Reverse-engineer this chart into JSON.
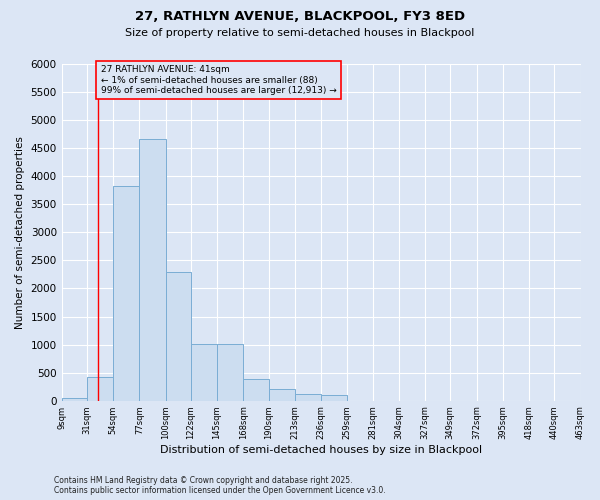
{
  "title_line1": "27, RATHLYN AVENUE, BLACKPOOL, FY3 8ED",
  "title_line2": "Size of property relative to semi-detached houses in Blackpool",
  "xlabel": "Distribution of semi-detached houses by size in Blackpool",
  "ylabel": "Number of semi-detached properties",
  "annotation_line1": "27 RATHLYN AVENUE: 41sqm",
  "annotation_line2": "← 1% of semi-detached houses are smaller (88)",
  "annotation_line3": "99% of semi-detached houses are larger (12,913) →",
  "footer_line1": "Contains HM Land Registry data © Crown copyright and database right 2025.",
  "footer_line2": "Contains public sector information licensed under the Open Government Licence v3.0.",
  "bar_left_edges": [
    9,
    31,
    54,
    77,
    100,
    122,
    145,
    168,
    190,
    213,
    236,
    259,
    281,
    304,
    327,
    349,
    372,
    395,
    418,
    440
  ],
  "bar_widths": [
    22,
    23,
    23,
    23,
    22,
    23,
    23,
    22,
    23,
    23,
    23,
    22,
    23,
    23,
    22,
    23,
    23,
    23,
    22,
    23
  ],
  "bar_heights": [
    50,
    430,
    3820,
    4660,
    2290,
    1010,
    1010,
    380,
    200,
    120,
    100,
    0,
    0,
    0,
    0,
    0,
    0,
    0,
    0,
    0
  ],
  "tick_labels": [
    "9sqm",
    "31sqm",
    "54sqm",
    "77sqm",
    "100sqm",
    "122sqm",
    "145sqm",
    "168sqm",
    "190sqm",
    "213sqm",
    "236sqm",
    "259sqm",
    "281sqm",
    "304sqm",
    "327sqm",
    "349sqm",
    "372sqm",
    "395sqm",
    "418sqm",
    "440sqm",
    "463sqm"
  ],
  "bar_color": "#ccddf0",
  "bar_edge_color": "#7aadd4",
  "red_line_x": 41,
  "ylim": [
    0,
    6000
  ],
  "yticks": [
    0,
    500,
    1000,
    1500,
    2000,
    2500,
    3000,
    3500,
    4000,
    4500,
    5000,
    5500,
    6000
  ],
  "bg_color": "#dce6f5",
  "plot_bg_color": "#dce6f5",
  "grid_color": "#ffffff",
  "annotation_box_facecolor": "#dce6f5",
  "annotation_box_edgecolor": "red",
  "xlim_left": 9,
  "xlim_right": 463
}
